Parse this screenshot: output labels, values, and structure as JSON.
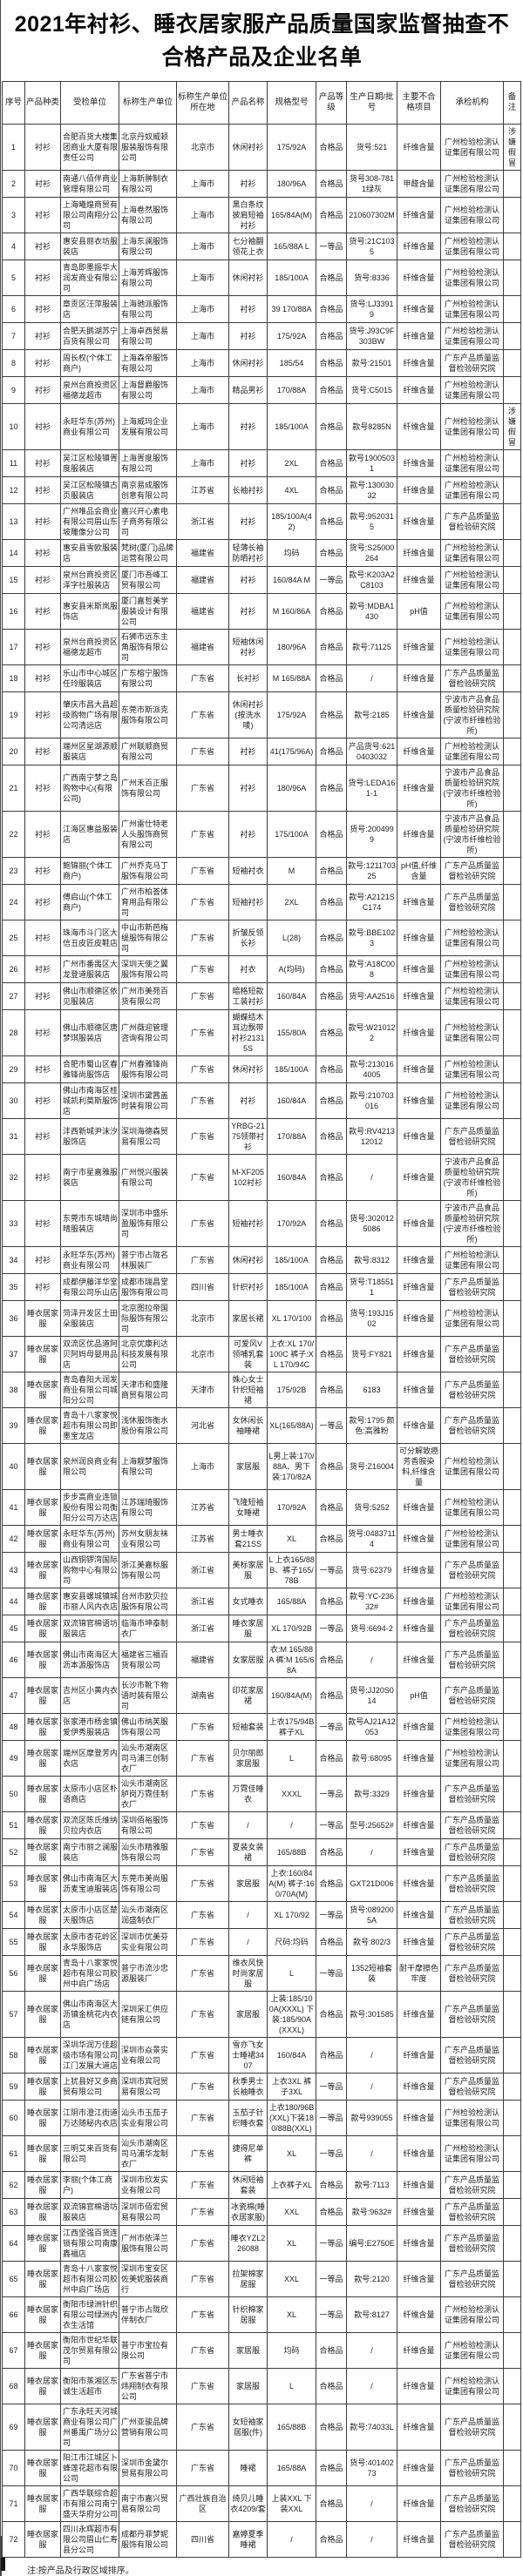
{
  "title": "2021年衬衫、睡衣居家服产品质量国家监督抽查不合格产品及企业名单",
  "footnote": "注:按产品及行政区域排序。",
  "table": {
    "headers": [
      "序号",
      "产品种类",
      "受检单位",
      "标称生产单位",
      "标称生产单位所在地",
      "产品名称",
      "规格型号",
      "产品等级",
      "生产日期/批号",
      "主要不合格项目",
      "承检机构",
      "备注"
    ],
    "rows": [
      [
        "1",
        "衬衫",
        "合肥百货大楼集团商业大厦有限责任公司",
        "北京丹奴威顿服装服饰有限公司",
        "北京市",
        "休闲衬衫",
        "175/92A",
        "合格品",
        "货号:521",
        "纤维含量",
        "广州检验检测认证集团有限公司",
        "涉嫌假冒"
      ],
      [
        "2",
        "衬衫",
        "南通八佰伴商业管理有限公司",
        "上海新翀制衣有限公司",
        "上海市",
        "衬衫",
        "180/96A",
        "合格品",
        "货号308-7811绿灰",
        "甲醛含量",
        "广州检验检测认证集团有限公司",
        ""
      ],
      [
        "3",
        "衬衫",
        "上海曦煌商贸有限公司南翔分公司",
        "上海卷然服饰有限公司",
        "上海市",
        "黑白条纹披肩短袖衬衫",
        "165/84A(M)",
        "合格品",
        "210607302M",
        "纤维含量",
        "广州检验检测认证集团有限公司",
        ""
      ],
      [
        "4",
        "衬衫",
        "惠安县丽衣坊服装店",
        "上海东澜服饰有限公司",
        "上海市",
        "七分袖翻领花上衣",
        "165/88A L",
        "一等品",
        "货号:21C1035",
        "纤维含量",
        "广州检验检测认证集团有限公司",
        ""
      ],
      [
        "5",
        "衬衫",
        "青岛即墨振华大润发商业有限公司",
        "上海芳辉服饰有限公司",
        "上海市",
        "休闲衬衫",
        "185/100A",
        "合格品",
        "货号:8336",
        "纤维含量",
        "广州检验检测认证集团有限公司",
        ""
      ],
      [
        "6",
        "衬衫",
        "章贡区汪萍服装店",
        "上海驰派服饰有限公司",
        "上海市",
        "衬衫",
        "39 170/88A",
        "合格品",
        "货号:LJ33919",
        "纤维含量",
        "广州检验检测认证集团有限公司",
        ""
      ],
      [
        "7",
        "衬衫",
        "合肥天鹅湖苏宁百货有限公司",
        "上海卓西贸易有限公司",
        "上海市",
        "衬衫",
        "175/92A",
        "合格品",
        "货号:J93C9F303BW",
        "纤维含量",
        "广州检验检测认证集团有限公司",
        ""
      ],
      [
        "8",
        "衬衫",
        "周长权(个体工商户)",
        "上海森帝服饰有限公司",
        "上海市",
        "休闲衬衫",
        "185/54",
        "合格品",
        "款号:21501",
        "纤维含量",
        "广东产品质量监督检验研究院",
        ""
      ],
      [
        "9",
        "衬衫",
        "泉州台商投资区福德龙超市",
        "上海督爵服饰有限公司",
        "上海市",
        "精品男衫",
        "170/88A",
        "合格品",
        "货号:C5015",
        "纤维含量",
        "广州检验检测认证集团有限公司",
        ""
      ],
      [
        "10",
        "衬衫",
        "永旺华东(苏州)商业有限公司",
        "上海威玛企业发展有限公司",
        "上海市",
        "衬衫",
        "185/100A",
        "合格品",
        "款号8285N",
        "纤维含量",
        "广州检验检测认证集团有限公司",
        "涉嫌假冒"
      ],
      [
        "11",
        "衬衫",
        "吴江区松陵镇胥度服装店",
        "上海胥度服饰有限公司",
        "上海市",
        "衬衫",
        "2XL",
        "合格品",
        "款号19005031",
        "纤维含量",
        "广州检验检测认证集团有限公司",
        ""
      ],
      [
        "12",
        "衬衫",
        "吴江区松陵镇古页服装店",
        "南京易成服饰创意有限公司",
        "江苏省",
        "长袖衬衫",
        "4XL",
        "合格品",
        "款号:13003032",
        "纤维含量",
        "广州检验检测认证集团有限公司",
        ""
      ],
      [
        "13",
        "衬衫",
        "广州唯品会商业有限公司眉山东坡雕像分公司",
        "嘉兴开心素电子商务有限公司",
        "浙江省",
        "衬衫",
        "185/100A(42)",
        "合格品",
        "款号:9520315",
        "纤维含量",
        "广东产品质量监督检验研究院",
        ""
      ],
      [
        "14",
        "衬衫",
        "惠安县雪欧服装店",
        "梵树(厦门)品牌运营有限公司",
        "福建省",
        "轻薄长袖防晒衬衫",
        "均码",
        "合格品",
        "货号:S25000264",
        "纤维含量",
        "广州检验检测认证集团有限公司",
        ""
      ],
      [
        "15",
        "衬衫",
        "泉州台商投资区泽字社服装店",
        "厦门市吾峰工贸有限公司",
        "福建省",
        "衬衫",
        "160/84A M",
        "一等品",
        "款号:K203A2C8103",
        "纤维含量",
        "广州检验检测认证集团有限公司",
        ""
      ],
      [
        "16",
        "衬衫",
        "惠安县米斯岚服饰店",
        "厦门嘉哲美学服装设计有限公司",
        "福建省",
        "衬衫",
        "M 160/86A",
        "合格品",
        "款号:MDBA1430",
        "pH值",
        "广州检验检测认证集团有限公司",
        ""
      ],
      [
        "17",
        "衬衫",
        "泉州台商投资区福德龙超市",
        "石狮市远东主角服饰有限公司",
        "福建省",
        "短袖休闲衬衫",
        "180/96A",
        "合格品",
        "款号:71125",
        "纤维含量",
        "广州检验检测认证集团有限公司",
        ""
      ],
      [
        "18",
        "衬衫",
        "乐山市中心城区任玲服装店",
        "广东榕宁服饰有限公司",
        "广东省",
        "长衬衫",
        "M 165/88A",
        "合格品",
        "/",
        "纤维含量",
        "广东产品质量监督检验研究院",
        ""
      ],
      [
        "19",
        "衬衫",
        "肇庆市昌大昌超级购物广场有限公司清远店",
        "东莞市斯派克服饰有限公司",
        "广东省",
        "休闲衬衫(按洗水唛)",
        "175/92A",
        "合格品",
        "款号:2185",
        "纤维含量",
        "宁波市产品食品质量检验研究院(宁波市纤维检验所)",
        ""
      ],
      [
        "20",
        "衬衫",
        "端州区星湖源顺服装店",
        "广州联顺商贸有限公司",
        "广东省",
        "衬衫",
        "41(175/96A)",
        "合格品",
        "产品货号:6210403032",
        "纤维含量",
        "广州检验检测认证集团有限公司",
        ""
      ],
      [
        "21",
        "衬衫",
        "广西南宁梦之岛购物中心(有限公司)",
        "广州禾百正服饰有限公司",
        "广东省",
        "衬衫",
        "180/96A",
        "合格品",
        "货号:LEDA161-1",
        "纤维含量",
        "宁波市产品食品质量检验研究院(宁波市纤维检验所)",
        ""
      ],
      [
        "22",
        "衬衫",
        "江海区惠益服装店",
        "广州雷仕特老人头服饰商贸有限公司",
        "广东省",
        "衬衫",
        "175/100A",
        "合格品",
        "货号:2004999",
        "纤维含量",
        "宁波市产品食品质量检验研究院(宁波市纤维检验所)",
        ""
      ],
      [
        "23",
        "衬衫",
        "鲍锦丽(个体工商户)",
        "广州乔克马丁服饰有限公司",
        "广东省",
        "短袖衬衣",
        "M",
        "合格品",
        "款号:121170325",
        "pH值,纤维含量",
        "广东产品质量监督检验研究院",
        ""
      ],
      [
        "24",
        "衬衫",
        "傅启山(个体工商户)",
        "广州市柏荟体育用品有限公司",
        "广东省",
        "短袖衬衫",
        "2XL",
        "合格品",
        "款号:A2121SC174",
        "纤维含量",
        "广东产品质量监督检验研究院",
        ""
      ],
      [
        "25",
        "衬衫",
        "珠海市斗门区大信丑皮匠皮鞋店",
        "中山市新芭梅缇服饰有限公司",
        "广东省",
        "折皱反领长衫",
        "L(28)",
        "合格品",
        "款号:BBE1023",
        "纤维含量",
        "广州检验检测认证集团有限公司",
        ""
      ],
      [
        "26",
        "衬衫",
        "广州市番禺区大龙登道服装店",
        "深圳天使之翼服饰有限公司",
        "广东省",
        "衬衣",
        "A(均码)",
        "合格品",
        "款号:A18C008",
        "纤维含量",
        "广州检验检测认证集团有限公司",
        ""
      ],
      [
        "27",
        "衬衫",
        "佛山市顺德区依见服装店",
        "广州市美苑百货有限公司",
        "广东省",
        "暗格短款工装衬衫",
        "160/84A",
        "合格品",
        "货号:AA2516",
        "纤维含量",
        "广州检验检测认证集团有限公司",
        ""
      ],
      [
        "28",
        "衬衫",
        "佛山市顺德区唐梦琪服装店",
        "广州薇迎管理咨询有限公司",
        "广东省",
        "蝴蝶结木耳边飘带衬衫21315S",
        "155/80A",
        "合格品",
        "款号:W210122",
        "纤维含量",
        "广州检验检测认证集团有限公司",
        ""
      ],
      [
        "29",
        "衬衫",
        "合肥市蜀山区春雅锋尚服饰店",
        "广州春雅锋尚服饰有限公司",
        "广东省",
        "休闲衬衫",
        "185/100A",
        "合格品",
        "款号:2130164005",
        "纤维含量",
        "广州检验检测认证集团有限公司",
        ""
      ],
      [
        "30",
        "衬衫",
        "佛山市南海区桂城凯利莫斯服饰店",
        "深圳市黛茜盖时装有限公司",
        "广东省",
        "衬衫",
        "160/84A",
        "合格品",
        "款号:210703016",
        "纤维含量",
        "广州检验检测认证集团有限公司",
        ""
      ],
      [
        "31",
        "衬衫",
        "沣西新城尹沫汐服饰店",
        "深圳海德森贸易有限公司",
        "广东省",
        "YRBG-2175领带衬衫",
        "170/88A",
        "合格品",
        "款号:RV421312012",
        "纤维含量",
        "广东产品质量监督检验研究院",
        ""
      ],
      [
        "32",
        "衬衫",
        "南宁市星嘉雅服装店",
        "广州悦兴服装有限公司",
        "广东省",
        "M-XF205102衬衫",
        "160/84A",
        "合格品",
        "/",
        "纤维含量",
        "宁波市产品食品质量检验研究院(宁波市纤维检验所)",
        ""
      ],
      [
        "33",
        "衬衫",
        "东莞市东城晴尚晴服装店",
        "深圳市中盛乐盈服饰有限公司",
        "广东省",
        "短袖衬衫",
        "170/92A",
        "合格品",
        "货号:3020125086",
        "纤维含量",
        "宁波市产品食品质量检验研究院(宁波市纤维检验所)",
        ""
      ],
      [
        "34",
        "衬衫",
        "永旺华东(苏州)商业有限公司",
        "普宁市占陇名林服装厂",
        "广东省",
        "休闲衬衫",
        "185/100A",
        "合格品",
        "款号:8312",
        "纤维含量",
        "广州检验检测认证集团有限公司",
        ""
      ],
      [
        "35",
        "衬衫",
        "成都伊藤洋华堂有限公司乐山店",
        "成都市瑞昌堂服饰有限公司",
        "四川省",
        "针织衬衫",
        "185/100A",
        "合格品",
        "货号:T185511",
        "纤维含量",
        "广东产品质量监督检验研究院",
        ""
      ],
      [
        "36",
        "睡衣居家服",
        "菏泽开发区土田朵服装店",
        "北京图拉帝国际服饰有限公司",
        "北京市",
        "家居长裙",
        "XL 170/100",
        "合格品",
        "货号:193J1502",
        "纤维含量",
        "广州检验检测认证集团有限公司",
        ""
      ],
      [
        "37",
        "睡衣居家服",
        "双流区优品道阿贝阿妈母婴用品店",
        "北京优康利达科技发展有限公司",
        "北京市",
        "可爱风V领哺乳套装",
        "上衣:XL 170/100C 裤子:XL 170/94C",
        "合格品",
        "货号:FY821",
        "纤维含量",
        "广东产品质量监督检验研究院",
        ""
      ],
      [
        "38",
        "睡衣居家服",
        "青岛春阳大润发商业有限公司城阳分公司",
        "天津市和盛隆商贸有限公司",
        "天津市",
        "姝心女士针织短袖裙",
        "175/92B",
        "合格品",
        "6183",
        "纤维含量",
        "广东产品质量监督检验研究院",
        ""
      ],
      [
        "39",
        "睡衣居家服",
        "青岛十八家家悦超市有限公司即墨宝龙店",
        "浅休服饰衡水股份有限公司",
        "河北省",
        "女休闲长袖睡裙",
        "XL(165/88A)",
        "一等品",
        "款号:1795 颜色:高雅粉",
        "纤维含量",
        "广东产品质量监督检验研究院",
        ""
      ],
      [
        "40",
        "睡衣居家服",
        "泉州润良商业有限公司",
        "上海靓梦服饰有限公司",
        "上海市",
        "家居服",
        "L男上装:170/88A、男下装:170/82A",
        "合格品",
        "货号:Z16004",
        "可分解致癌芳香胺染料,纤维含量",
        "广州检验检测认证集团有限公司",
        ""
      ],
      [
        "41",
        "睡衣居家服",
        "步步高商业连锁股份有限公司衡阳分公司万达店",
        "江苏瑞琦服饰有限公司",
        "江苏省",
        "飞隆短袖女睡裙",
        "170/92A",
        "合格品",
        "货号:5252",
        "纤维含量",
        "广州检验检测认证集团有限公司",
        ""
      ],
      [
        "42",
        "睡衣居家服",
        "永旺华东(苏州)商业有限公司",
        "苏州女朋友袜业有限公司",
        "江苏省",
        "男士睡衣套21SS",
        "XL",
        "合格品",
        "货号:04837114",
        "纤维含量",
        "广州检验检测认证集团有限公司",
        ""
      ],
      [
        "43",
        "睡衣居家服",
        "山西铜锣湾国际购物中心有限公司",
        "浙江美嘉标服饰有限公司",
        "浙江省",
        "美标家居服",
        "L 上衣165/88B、裤子165/78B",
        "一等品",
        "货号:62379",
        "纤维含量",
        "广东产品质量监督检验研究院",
        ""
      ],
      [
        "44",
        "睡衣居家服",
        "惠安县螺城镇城市丽人风内衣店",
        "台州市欧贝拉服饰有限公司",
        "浙江省",
        "女式睡衣",
        "165/88A",
        "合格品",
        "款号:YC-23632#",
        "纤维含量",
        "广州检验检测认证集团有限公司",
        ""
      ],
      [
        "45",
        "睡衣居家服",
        "双流锦官棉语坊服装店",
        "临海市坤泰制衣厂",
        "浙江省",
        "睡衣家居服",
        "XL 170/92B",
        "一等品",
        "货号:6694-2",
        "纤维含量",
        "广东产品质量监督检验研究院",
        ""
      ],
      [
        "46",
        "睡衣居家服",
        "佛山市南海区大沥本源服饰店",
        "福建省三福百货有限公司",
        "福建省",
        "女家居服",
        "衣:M 165/88A 裤:M 165/68A",
        "合格品",
        "/",
        "纤维含量",
        "广东产品质量监督检验研究院",
        ""
      ],
      [
        "47",
        "睡衣居家服",
        "吉州区小黄内衣店",
        "长沙市靴下物语时装有限公司",
        "湖南省",
        "印花家居裙",
        "160/84A(M)",
        "合格品",
        "货号:JJ20S014",
        "pH值",
        "广东产品质量监督检验研究院",
        ""
      ],
      [
        "48",
        "睡衣居家服",
        "张家港市杨舍镇爱伊秀服装店",
        "佛山市纳芙服饰有限公司",
        "广东省",
        "短袖套装",
        "上衣175/94B 裤子XL",
        "一等品",
        "款号AJ21A12053",
        "纤维含量",
        "广州检验检测认证集团有限公司",
        ""
      ],
      [
        "49",
        "睡衣居家服",
        "端州区摩登芳内衣店",
        "汕头市潮南区司马浦三创制衣厂",
        "广东省",
        "贝尔丽郎家居服",
        "L",
        "合格品",
        "款号:68095",
        "纤维含量",
        "广州检验检测认证集团有限公司",
        ""
      ],
      [
        "50",
        "睡衣居家服",
        "太原市小店区朴语商店",
        "汕头市潮南区胪岗万霓佳制衣厂",
        "广东省",
        "万霓佳睡衣",
        "XXXL",
        "一等品",
        "款号:3329",
        "纤维含量",
        "广东产品质量监督检验研究院",
        ""
      ],
      [
        "51",
        "睡衣居家服",
        "双流区陈氏维纳贝拉内衣店",
        "深圳佰裕服饰有限公司",
        "广东省",
        "/",
        "/",
        "一等品",
        "型号:25652#",
        "纤维含量",
        "广东产品质量监督检验研究院",
        ""
      ],
      [
        "52",
        "睡衣居家服",
        "南宁市丽之澜服装店",
        "汕头市精雅服饰有限公司",
        "广东省",
        "夏装女装裙",
        "165/88B",
        "合格品",
        "/",
        "纤维含量",
        "广东产品质量监督检验研究院",
        ""
      ],
      [
        "53",
        "睡衣居家服",
        "佛山市南海区大沥麦宝迪服装店",
        "东莞市美尚服饰有限公司",
        "广东省",
        "家居服",
        "上衣:160/84A(M) 裤子:160/70A(M)",
        "合格品",
        "GXT21D006",
        "纤维含量",
        "广东产品质量监督检验研究院",
        ""
      ],
      [
        "54",
        "睡衣居家服",
        "太原市小店区楚天服饰店",
        "汕头市潮南区润盛制衣厂",
        "广东省",
        "/",
        "XL 170/92",
        "一等品",
        "货号:0892005A",
        "纤维含量",
        "广东产品质量监督检验研究院",
        ""
      ],
      [
        "55",
        "睡衣居家服",
        "太原市杏花岭区永华服饰店",
        "深圳市优美芬实业有限公司",
        "广东省",
        "/",
        "尺码:均码",
        "合格品",
        "款号:802/3",
        "纤维含量",
        "广东产品质量监督检验研究院",
        ""
      ],
      [
        "56",
        "睡衣居家服",
        "青岛十八家家悦超市有限公司胶州中启广场店",
        "普宁市流沙忠源服装厂",
        "广东省",
        "维衣风快时尚家居服",
        "L",
        "一等品",
        "1352短袖套装",
        "耐干摩擦色牢度",
        "广东产品质量监督检验研究院",
        ""
      ],
      [
        "57",
        "睡衣居家服",
        "佛山市南海区大沥镇金桃花内衣店",
        "深圳采汇供应链有限公司",
        "广东省",
        "家居服",
        "上装:185/100A(XXXL) 下装:185/90A(XXXL)",
        "合格品",
        "款号:301585",
        "纤维含量",
        "广东产品质量监督检验研究院",
        ""
      ],
      [
        "58",
        "睡衣居家服",
        "深圳华润万佳超级市场有限公司江门发展大道店",
        "深圳市焱景实业有限公司",
        "广东省",
        "雪亦飞女士睡裙3407",
        "160/84A",
        "合格品",
        "/",
        "纤维含量",
        "广东产品质量监督检验研究院",
        ""
      ],
      [
        "59",
        "睡衣居家服",
        "上犹县好又多商贸有限公司",
        "深圳市宾冠贸易有限公司",
        "广东省",
        "秋季男士长袖睡衣",
        "上衣3XL 裤子3XL",
        "一等品",
        "/",
        "纤维含量",
        "广东产品质量监督检验研究院",
        ""
      ],
      [
        "60",
        "睡衣居家服",
        "江阴市澄江街道万达随秘内衣店",
        "汕头市玉茄子实业有限公司",
        "广东省",
        "玉茄子针织睡衣套",
        "上衣180/96B(XXL)下装180/88B(XXL)",
        "一等品",
        "款号939055",
        "纤维含量",
        "广州检验检测认证集团有限公司",
        ""
      ],
      [
        "61",
        "睡衣居家服",
        "三明艾来百货有限公司",
        "汕头市潮南区司马浦华龙制衣厂",
        "广东省",
        "捷得尼单裤",
        "XL",
        "一等品",
        "/",
        "纤维含量",
        "广州检验检测认证集团有限公司",
        ""
      ],
      [
        "62",
        "睡衣居家服",
        "李丽(个体工商户)",
        "深圳市欣发实业有限公司",
        "广东省",
        "休闲短袖套装",
        "上衣裤子XL",
        "合格品",
        "款号:7113",
        "纤维含量",
        "广东产品质量监督检验研究院",
        ""
      ],
      [
        "63",
        "睡衣居家服",
        "双流锦官棉语坊服装店",
        "深圳市佰宏贸易有限公司",
        "广东省",
        "冰瓷棉(睡衣居家服)",
        "XXL",
        "合格品",
        "款号:9632#",
        "纤维含量",
        "广东产品质量监督检验研究院",
        ""
      ],
      [
        "64",
        "睡衣居家服",
        "江西坚强百货连锁有限公司南康鑫福店",
        "广州市依泽兰服饰有限公司",
        "广东省",
        "睡衣YZL226088",
        "XL",
        "一等品",
        "编号:E2750E",
        "纤维含量",
        "广东产品质量监督检验研究院",
        ""
      ],
      [
        "65",
        "睡衣居家服",
        "青岛十八家家悦超市有限公司胶州中启广场店",
        "深圳市宝安区佐美妮服装商行",
        "广东省",
        "拉架棉家居服",
        "XXL",
        "一等品",
        "款号:2120",
        "纤维含量",
        "广东产品质量监督检验研究院",
        ""
      ],
      [
        "66",
        "睡衣居家服",
        "衡阳市绿洲针织有限公司绿洲内衣生活馆",
        "普宁市占陇欣伴制衣厂",
        "广东省",
        "针织棉家居服",
        "XL",
        "一等品",
        "款号:8127",
        "纤维含量",
        "广州检验检测认证集团有限公司",
        ""
      ],
      [
        "67",
        "睡衣居家服",
        "衡阳市世纪华联茂尔贸易有限公司",
        "普宁市宝拉有限公司",
        "广东省",
        "家居服",
        "均码",
        "合格品",
        "/",
        "纤维含量",
        "广州检验检测认证集团有限公司",
        ""
      ],
      [
        "68",
        "睡衣居家服",
        "衡阳市蒸湘区东诚生活超市",
        "广东省普宁市炜翔制衣有限公司",
        "广东省",
        "家居服",
        "L",
        "合格品",
        "/",
        "纤维含量",
        "广州检验检测认证集团有限公司",
        ""
      ],
      [
        "69",
        "睡衣居家服",
        "广东永旺天河城商业有限公司广州番禺广场分公司",
        "广州亚骏品牌营销有限公司",
        "广东省",
        "女短袖家居服(件)",
        "165/88B",
        "合格品",
        "款号:74033L",
        "纤维含量",
        "广东产品质量监督检验研究院",
        ""
      ],
      [
        "70",
        "睡衣居家服",
        "阳江市江城区卜蜂莲花超市有限公司",
        "深圳市金黛尔贸易有限公司",
        "广东省",
        "睡裙",
        "165/88A",
        "合格品",
        "货号:40140273",
        "纤维含量",
        "广东产品质量监督检验研究院",
        ""
      ],
      [
        "71",
        "睡衣居家服",
        "广西华联综合超市有限公司南宁盛天华府分公司",
        "南宁市嘉兴贸易有限公司",
        "广西壮族自治区",
        "绮贝儿睡衣4209/套",
        "上装XXL 下装XXL",
        "合格品",
        "/",
        "纤维含量",
        "广东产品质量监督检验研究院",
        ""
      ],
      [
        "72",
        "睡衣居家服",
        "四川永辉超市有限公司眉山仁寿县分公司",
        "成都丹菲梦妮服饰有限公司",
        "四川省",
        "嘉婷夏季睡裙",
        "/",
        "合格品",
        "/",
        "纤维含量",
        "广东产品质量监督检验研究院",
        ""
      ]
    ]
  }
}
